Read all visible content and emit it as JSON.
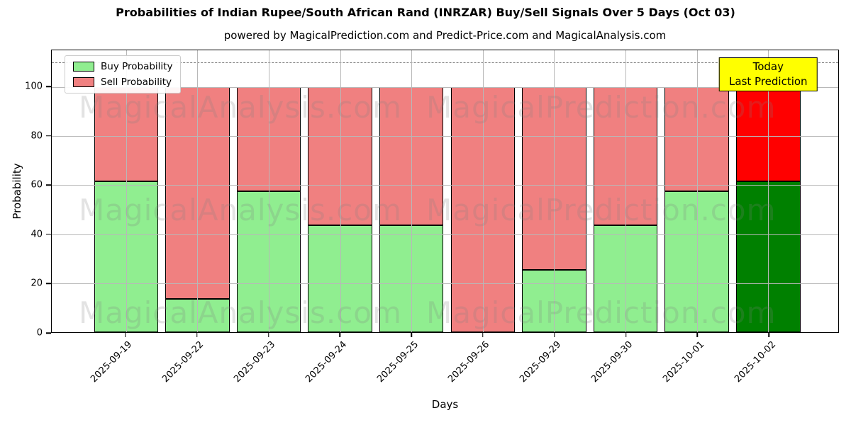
{
  "title": "Probabilities of Indian Rupee/South African Rand (INRZAR) Buy/Sell Signals Over 5 Days (Oct 03)",
  "subtitle": "powered by MagicalPrediction.com and Predict-Price.com and MagicalAnalysis.com",
  "colors": {
    "buy": "#90EE90",
    "sell": "#F08080",
    "buy_today": "#008000",
    "sell_today": "#FF0000",
    "grid": "#b8b8b8",
    "dashed_line": "#808080",
    "watermark": "rgba(128,128,128,0.22)",
    "today_box_bg": "#FFFF00",
    "bar_edge": "#000000"
  },
  "legend": {
    "items": [
      {
        "label": "Buy Probability",
        "color": "#90EE90"
      },
      {
        "label": "Sell Probability",
        "color": "#F08080"
      }
    ]
  },
  "today_annotation": {
    "line1": "Today",
    "line2": "Last Prediction"
  },
  "watermarks": {
    "left": "MagicalAnalysis.com",
    "right": "MagicalPrediction.com"
  },
  "chart_data": {
    "type": "bar",
    "stacked": true,
    "title": "Probabilities of Indian Rupee/South African Rand (INRZAR) Buy/Sell Signals Over 5 Days (Oct 03)",
    "xlabel": "Days",
    "ylabel": "Probability",
    "categories": [
      "2025-09-19",
      "2025-09-22",
      "2025-09-23",
      "2025-09-24",
      "2025-09-25",
      "2025-09-26",
      "2025-09-29",
      "2025-09-30",
      "2025-10-01",
      "2025-10-02"
    ],
    "series": [
      {
        "name": "Buy Probability",
        "color": "#90EE90",
        "values": [
          61.5,
          13.5,
          57.5,
          43.5,
          43.5,
          0,
          25.5,
          43.5,
          57.5,
          61.5
        ]
      },
      {
        "name": "Sell Probability",
        "color": "#F08080",
        "values": [
          38.5,
          86.5,
          42.5,
          56.5,
          56.5,
          100,
          74.5,
          56.5,
          42.5,
          38.5
        ]
      }
    ],
    "today_index": 9,
    "today_colors": {
      "buy": "#008000",
      "sell": "#FF0000"
    },
    "yticks": [
      0,
      20,
      40,
      60,
      80,
      100
    ],
    "ylim": [
      0,
      115
    ],
    "dashed_line_y": 110,
    "grid": true,
    "legend_position": "upper left"
  }
}
